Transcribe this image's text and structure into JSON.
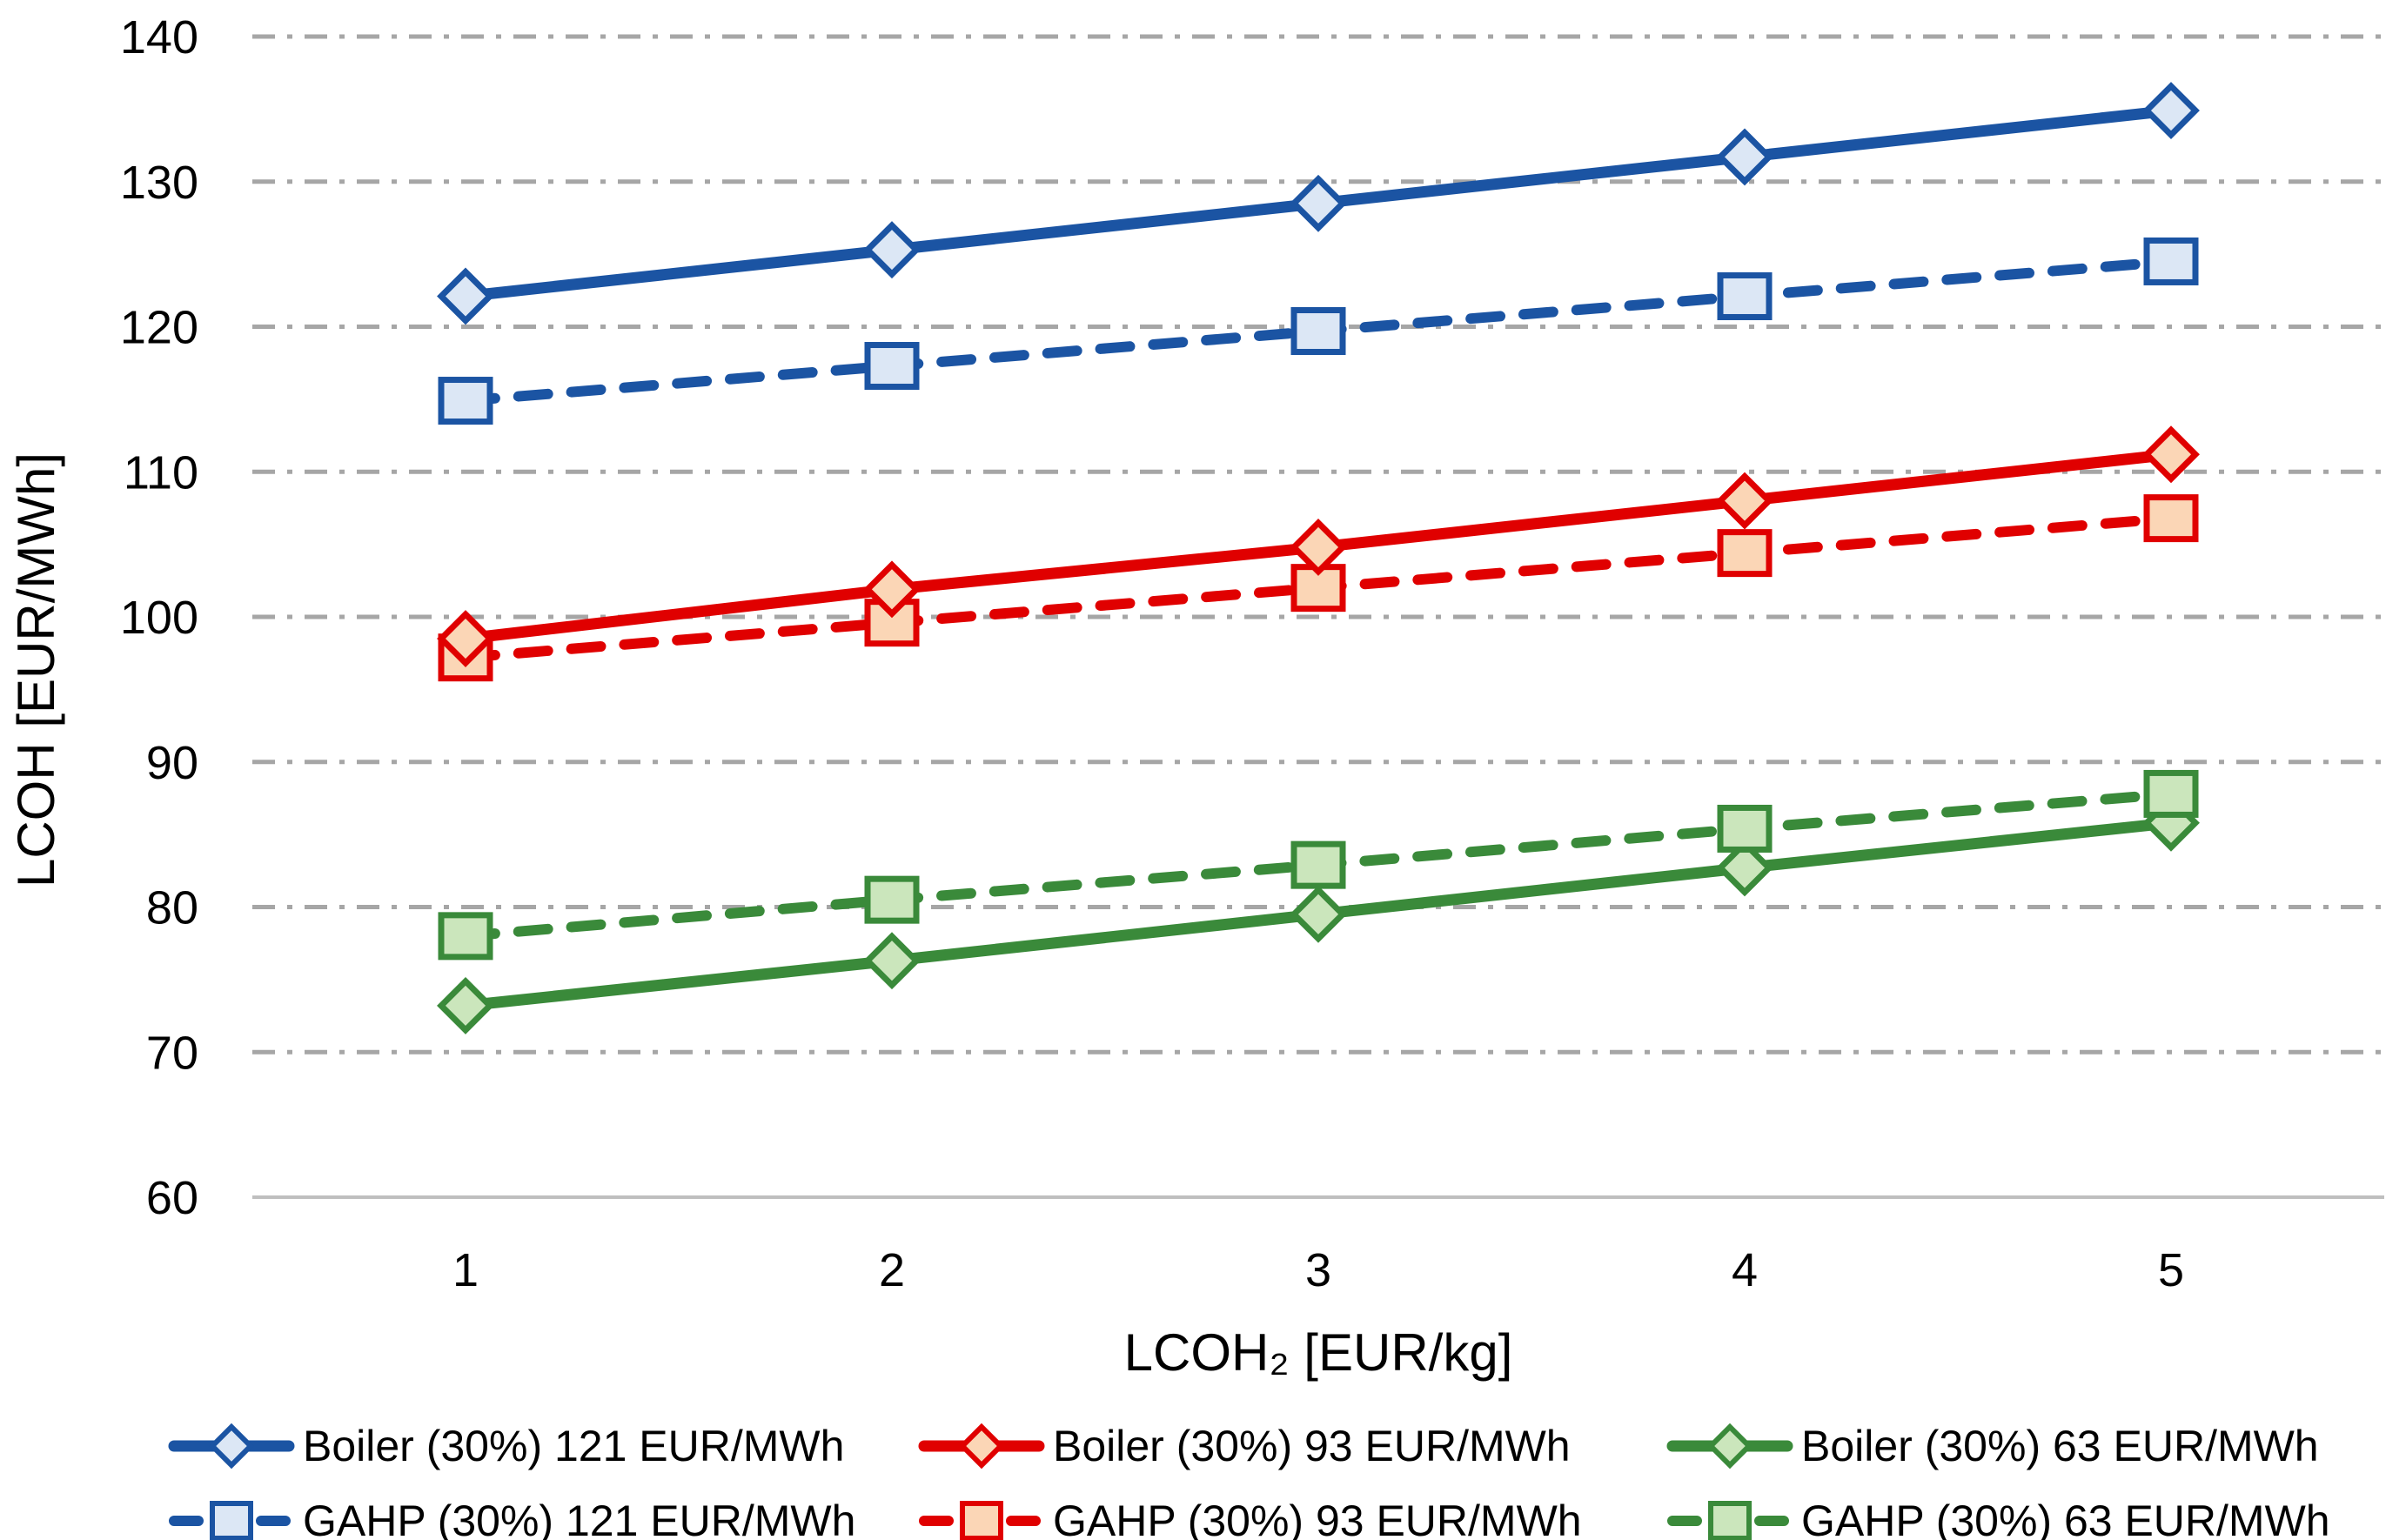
{
  "figure": {
    "background": "#ffffff",
    "gridline_color": "#a6a6a6",
    "axis_line_color": "#bfbfbf",
    "text_color": "#000000"
  },
  "axes": {
    "y": {
      "title": "LCOH [EUR/MWh]",
      "min": 60,
      "max": 140,
      "tick_step": 10,
      "tick_labels": [
        "60",
        "70",
        "80",
        "90",
        "100",
        "110",
        "120",
        "130",
        "140"
      ]
    },
    "x": {
      "title": "LCOH₂ [EUR/kg]",
      "tick_labels": [
        "1",
        "2",
        "3",
        "4",
        "5"
      ]
    }
  },
  "chart_data": {
    "type": "line",
    "x": [
      1,
      2,
      3,
      4,
      5
    ],
    "xlabel": "LCOH₂ [EUR/kg]",
    "ylabel": "LCOH [EUR/MWh]",
    "ylim": [
      60,
      140
    ],
    "grid": "horizontal, dash-dot, gray",
    "legend_position": "bottom",
    "series": [
      {
        "name": "Boiler (30%) 121 EUR/MWh",
        "color": "#1b54a3",
        "marker_fill": "#dce7f5",
        "line_style": "solid",
        "marker": "diamond",
        "values": [
          122.1,
          125.3,
          128.5,
          131.7,
          134.9
        ]
      },
      {
        "name": "GAHP (30%) 121 EUR/MWh",
        "color": "#1b54a3",
        "marker_fill": "#dce7f5",
        "line_style": "dashed",
        "marker": "square",
        "values": [
          114.9,
          117.3,
          119.7,
          122.1,
          124.5
        ]
      },
      {
        "name": "Boiler (30%) 93 EUR/MWh",
        "color": "#e00000",
        "marker_fill": "#fbd6b6",
        "line_style": "solid",
        "marker": "diamond",
        "values": [
          98.5,
          101.9,
          104.8,
          108.0,
          111.2
        ]
      },
      {
        "name": "GAHP (30%) 93 EUR/MWh",
        "color": "#e00000",
        "marker_fill": "#fbd6b6",
        "line_style": "dashed",
        "marker": "square",
        "values": [
          97.2,
          99.6,
          102.0,
          104.4,
          106.8
        ]
      },
      {
        "name": "Boiler (30%) 63 EUR/MWh",
        "color": "#3a8a3a",
        "marker_fill": "#cbe6bc",
        "line_style": "solid",
        "marker": "diamond",
        "values": [
          73.2,
          76.3,
          79.5,
          82.7,
          85.8
        ]
      },
      {
        "name": "GAHP (30%) 63 EUR/MWh",
        "color": "#3a8a3a",
        "marker_fill": "#cbe6bc",
        "line_style": "dashed",
        "marker": "square",
        "values": [
          78.0,
          80.5,
          82.9,
          85.4,
          87.8
        ]
      }
    ]
  }
}
